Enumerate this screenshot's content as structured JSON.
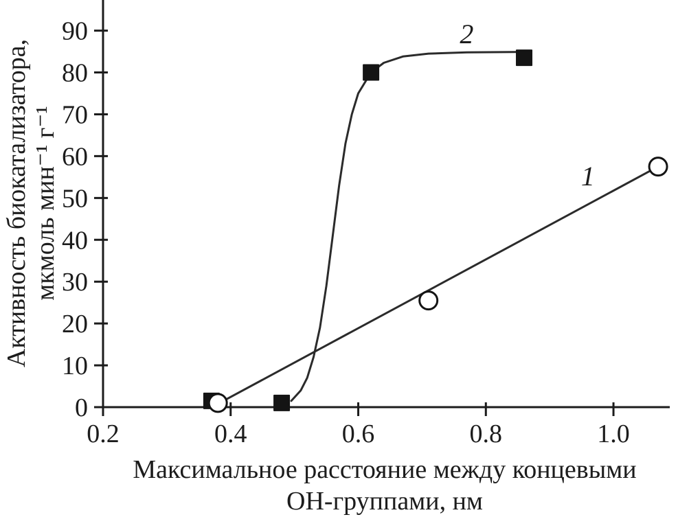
{
  "figure": {
    "background": "#ffffff"
  },
  "chart_data": {
    "type": "scatter",
    "title": "",
    "xlabel": [
      "Максимальное расстояние между концевыми",
      "ОН-группами, нм"
    ],
    "ylabel": [
      "Активность биокатализатора,",
      "мкмоль мин⁻¹ г⁻¹"
    ],
    "x_ticks": [
      "0.2",
      "0.4",
      "0.6",
      "0.8",
      "1.0"
    ],
    "x_tick_values": [
      0.2,
      0.4,
      0.6,
      0.8,
      1.0
    ],
    "y_ticks": [
      "0",
      "10",
      "20",
      "30",
      "40",
      "50",
      "60",
      "70",
      "80",
      "90"
    ],
    "y_tick_values": [
      0,
      10,
      20,
      30,
      40,
      50,
      60,
      70,
      80,
      90
    ],
    "xlim": [
      0.2,
      1.085
    ],
    "ylim": [
      0,
      96
    ],
    "grid": false,
    "legend_position": "inline-labels",
    "axis_color": "#1c1c1c",
    "series": [
      {
        "name": "1",
        "marker": "circle-open",
        "points": [
          [
            0.38,
            1
          ],
          [
            0.71,
            25.5
          ],
          [
            1.07,
            57.5
          ]
        ],
        "fit": "linear",
        "fit_line": [
          [
            0.385,
            1.2
          ],
          [
            1.07,
            57.5
          ]
        ],
        "label_pos": [
          0.96,
          53
        ]
      },
      {
        "name": "2",
        "marker": "square-filled",
        "points": [
          [
            0.37,
            1.5
          ],
          [
            0.48,
            1
          ],
          [
            0.62,
            80
          ],
          [
            0.86,
            83.5
          ]
        ],
        "fit": "sigmoid",
        "curve_points": [
          [
            0.495,
            1.5
          ],
          [
            0.51,
            4
          ],
          [
            0.52,
            7
          ],
          [
            0.53,
            12
          ],
          [
            0.54,
            19
          ],
          [
            0.55,
            29
          ],
          [
            0.56,
            41
          ],
          [
            0.57,
            53
          ],
          [
            0.58,
            63
          ],
          [
            0.59,
            70
          ],
          [
            0.6,
            75
          ],
          [
            0.62,
            80
          ],
          [
            0.64,
            82.3
          ],
          [
            0.67,
            83.8
          ],
          [
            0.71,
            84.5
          ],
          [
            0.77,
            84.8
          ],
          [
            0.86,
            84.9
          ]
        ],
        "label_pos": [
          0.77,
          87
        ]
      }
    ]
  }
}
